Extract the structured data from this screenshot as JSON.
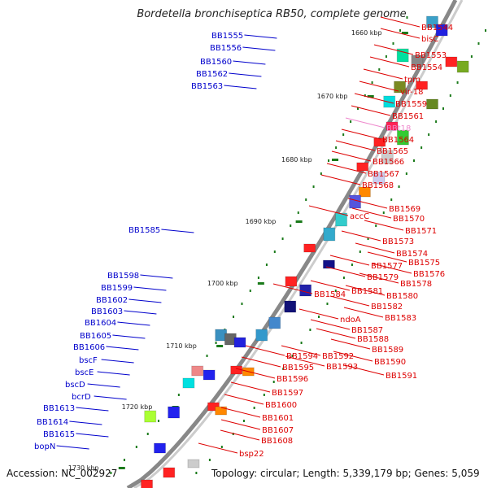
{
  "title": "Bordetella bronchiseptica RB50, complete genome",
  "footer": {
    "accession": "Accession: NC_002927",
    "info": "Topology: circular; Length: 5,339,179 bp; Genes: 5,059"
  },
  "colors": {
    "left_label": "#0000cc",
    "right_label": "#dd0000",
    "rna_label": "#ee88cc",
    "backbone": "#888888",
    "tick": "#1a7a1a"
  },
  "kbp_marks": [
    "1660 kbp",
    "1670 kbp",
    "1680 kbp",
    "1690 kbp",
    "1700 kbp",
    "1710 kbp",
    "1720 kbp",
    "1730 kbp"
  ],
  "left_labels": [
    "BB1555",
    "BB1556",
    "BB1560",
    "BB1562",
    "BB1563",
    "BB1585",
    "BB1598",
    "BB1599",
    "BB1602",
    "BB1603",
    "BB1604",
    "BB1605",
    "BB1606",
    "bscF",
    "bscE",
    "bscD",
    "bcrD",
    "BB1613",
    "BB1614",
    "BB1615",
    "bopN"
  ],
  "right_labels": [
    "BB1544",
    "bisC",
    "BB1553",
    "BB1554",
    "tpm",
    "vir-18",
    "BB1559",
    "BB1561",
    "BBt18",
    "BB1564",
    "BB1565",
    "BB1566",
    "BB1567",
    "BB1568",
    "BB1569",
    "BB1570",
    "accC",
    "BB1571",
    "BB1573",
    "BB1574",
    "BB1575",
    "BB1576",
    "BB1577",
    "BB1578",
    "BB1579",
    "BB1580",
    "BB1581",
    "BB1582",
    "BB1583",
    "BB1584",
    "ndoA",
    "BB1587",
    "BB1588",
    "BB1589",
    "BB1590",
    "BB1591",
    "BB1592",
    "BB1593",
    "BB1594",
    "BB1595",
    "BB1596",
    "BB1597",
    "BB1600",
    "BB1601",
    "BB1607",
    "BB1608",
    "bsp22"
  ]
}
